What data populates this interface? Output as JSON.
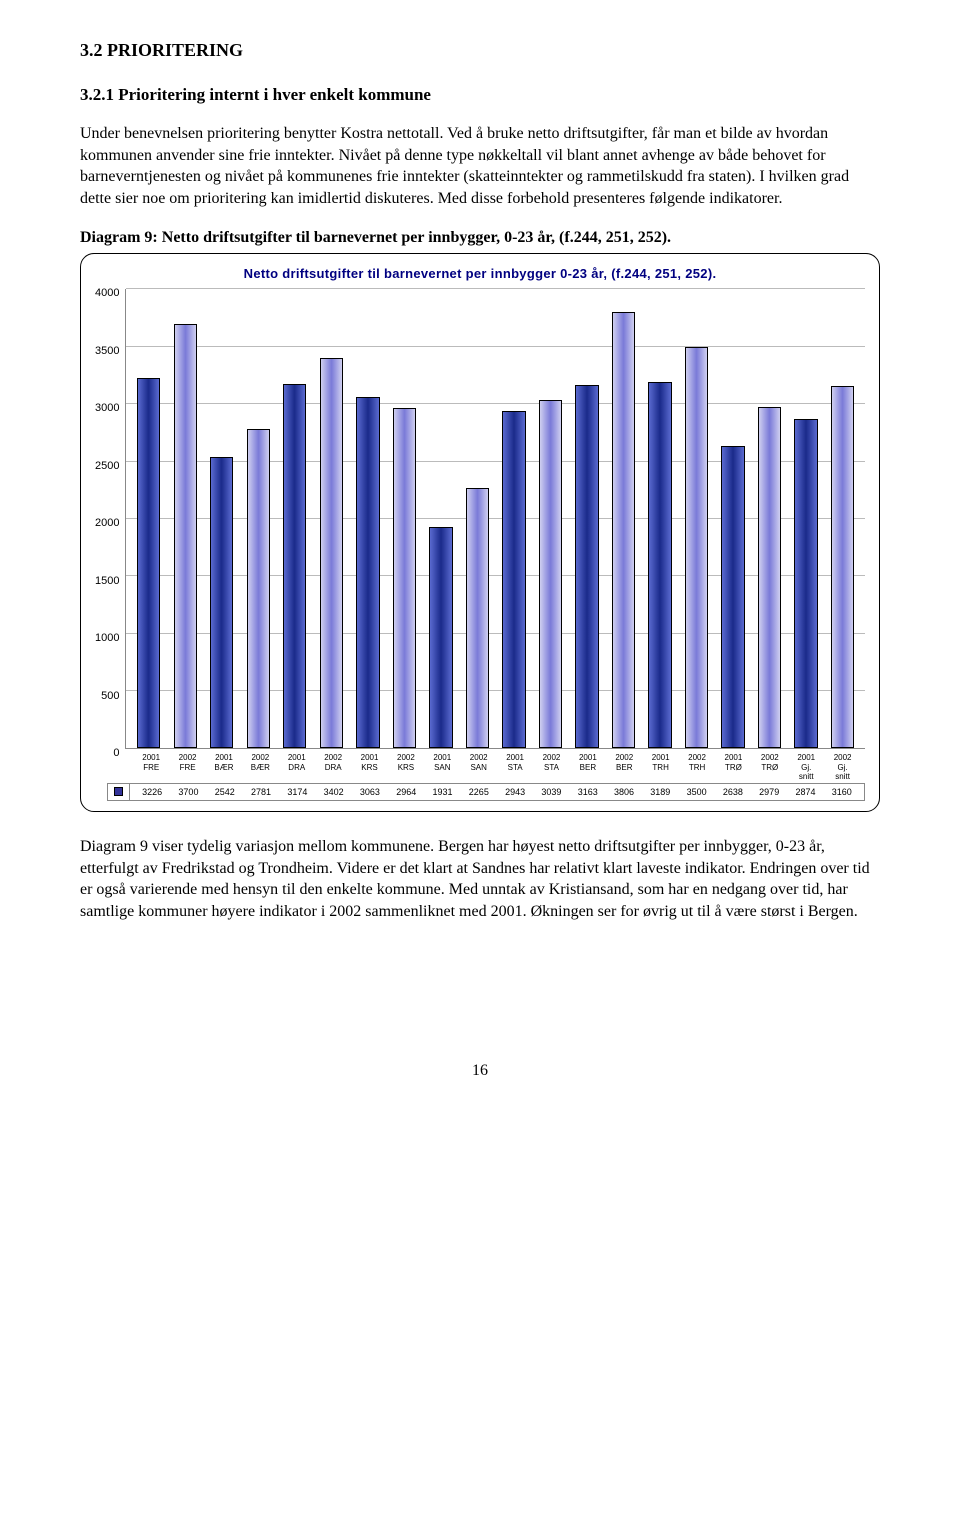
{
  "headings": {
    "h2": "3.2   PRIORITERING",
    "h3": "3.2.1   Prioritering internt  i hver enkelt kommune"
  },
  "paragraphs": {
    "intro": "Under benevnelsen prioritering benytter Kostra nettotall. Ved å bruke netto driftsutgifter, får man et bilde av hvordan kommunen anvender sine frie inntekter. Nivået på denne type nøkkeltall vil blant annet avhenge av både behovet for barneverntjenesten og nivået på kommunenes frie inntekter (skatteinntekter og rammetilskudd fra staten). I hvilken grad dette sier noe om prioritering kan imidlertid diskuteres. Med disse forbehold presenteres følgende indikatorer.",
    "caption": "Diagram 9: Netto driftsutgifter til barnevernet per innbygger, 0-23 år, (f.244, 251, 252).",
    "after": "Diagram 9 viser tydelig variasjon mellom kommunene. Bergen har høyest netto driftsutgifter per innbygger, 0-23 år, etterfulgt av Fredrikstad og Trondheim. Videre er det klart at Sandnes har relativt klart laveste indikator. Endringen over tid er også varierende med hensyn til den enkelte kommune. Med unntak av Kristiansand, som har en nedgang over tid, har samtlige kommuner høyere indikator i 2002 sammenliknet med 2001. Økningen ser for øvrig ut til å være størst i Bergen."
  },
  "chart": {
    "title": "Netto driftsutgifter til barnevernet per innbygger 0-23 år, (f.244, 251, 252).",
    "ymax": 4000,
    "ytick_step": 500,
    "yticks": [
      "0",
      "500",
      "1000",
      "1500",
      "2000",
      "2500",
      "3000",
      "3500",
      "4000"
    ],
    "grid_color": "#bbbbbb",
    "bar_border": "#000000",
    "color_2001_dark": "#1a2a8a",
    "color_2001_light": "#5a6ad0",
    "color_2002_dark": "#7a7ad8",
    "color_2002_light": "#cfcff0",
    "legend_swatch": "#333399",
    "categories": [
      {
        "label": "2001\nFRE",
        "value": 3226,
        "series": 0
      },
      {
        "label": "2002\nFRE",
        "value": 3700,
        "series": 1
      },
      {
        "label": "2001\nBÆR",
        "value": 2542,
        "series": 0
      },
      {
        "label": "2002\nBÆR",
        "value": 2781,
        "series": 1
      },
      {
        "label": "2001\nDRA",
        "value": 3174,
        "series": 0
      },
      {
        "label": "2002\nDRA",
        "value": 3402,
        "series": 1
      },
      {
        "label": "2001\nKRS",
        "value": 3063,
        "series": 0
      },
      {
        "label": "2002\nKRS",
        "value": 2964,
        "series": 1
      },
      {
        "label": "2001\nSAN",
        "value": 1931,
        "series": 0
      },
      {
        "label": "2002\nSAN",
        "value": 2265,
        "series": 1
      },
      {
        "label": "2001\nSTA",
        "value": 2943,
        "series": 0
      },
      {
        "label": "2002\nSTA",
        "value": 3039,
        "series": 1
      },
      {
        "label": "2001\nBER",
        "value": 3163,
        "series": 0
      },
      {
        "label": "2002\nBER",
        "value": 3806,
        "series": 1
      },
      {
        "label": "2001\nTRH",
        "value": 3189,
        "series": 0
      },
      {
        "label": "2002\nTRH",
        "value": 3500,
        "series": 1
      },
      {
        "label": "2001\nTRØ",
        "value": 2638,
        "series": 0
      },
      {
        "label": "2002\nTRØ",
        "value": 2979,
        "series": 1
      },
      {
        "label": "2001\nGj. snitt",
        "value": 2874,
        "series": 0
      },
      {
        "label": "2002\nGj. snitt",
        "value": 3160,
        "series": 1
      }
    ]
  },
  "page_number": "16"
}
